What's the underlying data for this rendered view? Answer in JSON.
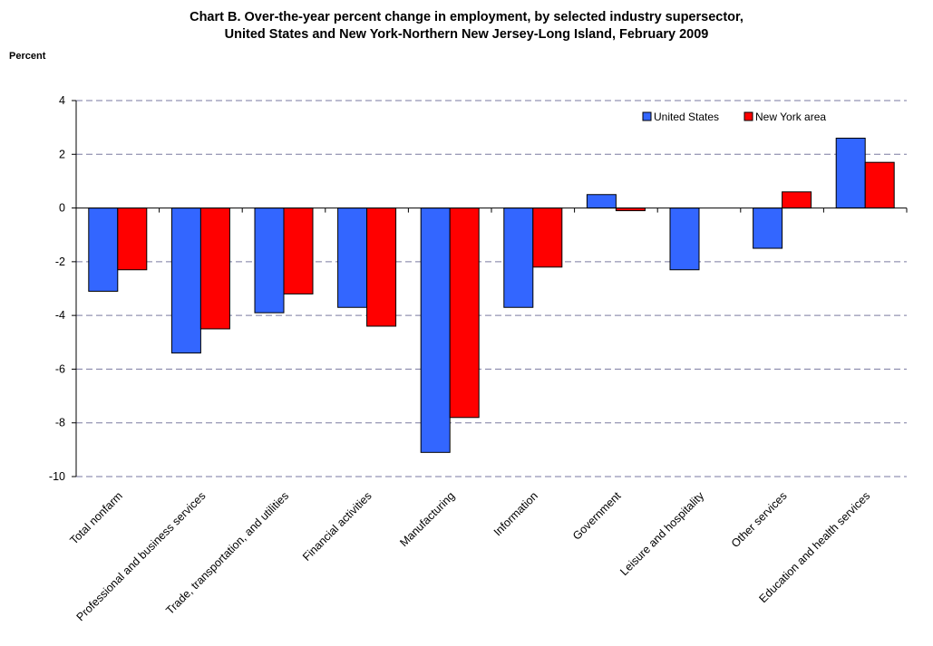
{
  "chart_data": {
    "type": "bar",
    "title_line1": "Chart B.  Over-the-year percent change in employment, by selected industry supersector,",
    "title_line2": "United States and New York-Northern New Jersey-Long Island, February 2009",
    "ylabel": "Percent",
    "xlabel": "",
    "ylim": [
      -10,
      4
    ],
    "yticks": [
      -10,
      -8,
      -6,
      -4,
      -2,
      0,
      2,
      4
    ],
    "grid": true,
    "legend_position": "top-right",
    "categories": [
      "Total nonfarm",
      "Professional and business services",
      "Trade, transportation, and utilities",
      "Financial activities",
      "Manufacturing",
      "Information",
      "Government",
      "Leisure and hospitality",
      "Other services",
      "Education and health services"
    ],
    "series": [
      {
        "name": "United States",
        "color": "#3366ff",
        "values": [
          -3.1,
          -5.4,
          -3.9,
          -3.7,
          -9.1,
          -3.7,
          0.5,
          -2.3,
          -1.5,
          2.6
        ]
      },
      {
        "name": "New York area",
        "color": "#ff0000",
        "values": [
          -2.3,
          -4.5,
          -3.2,
          -4.4,
          -7.8,
          -2.2,
          -0.1,
          0.0,
          0.6,
          1.7
        ]
      }
    ]
  }
}
